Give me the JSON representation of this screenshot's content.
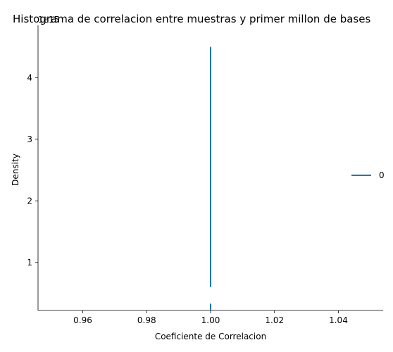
{
  "chart_data": {
    "type": "line",
    "title": "Histograma de correlacion entre muestras y primer millon de bases",
    "xlabel": "Coeficiente de Correlacion",
    "ylabel": "Density",
    "y_offset_text": "1e15",
    "xlim": [
      0.946,
      1.054
    ],
    "ylim": [
      0.22,
      4.85
    ],
    "x_ticks": [
      0.96,
      0.98,
      1.0,
      1.02,
      1.04
    ],
    "x_tick_labels": [
      "0.96",
      "0.98",
      "1.00",
      "1.02",
      "1.04"
    ],
    "y_ticks": [
      1,
      2,
      3,
      4
    ],
    "y_tick_labels": [
      "1",
      "2",
      "3",
      "4"
    ],
    "grid": false,
    "legend_placement": "right",
    "series": [
      {
        "name": "0",
        "color": "#1f77b4",
        "segments": [
          {
            "x": 1.0,
            "y_start": 0.6,
            "y_end": 4.5
          },
          {
            "x": 1.0,
            "y_start": 0.22,
            "y_end": 0.33
          }
        ]
      }
    ]
  }
}
